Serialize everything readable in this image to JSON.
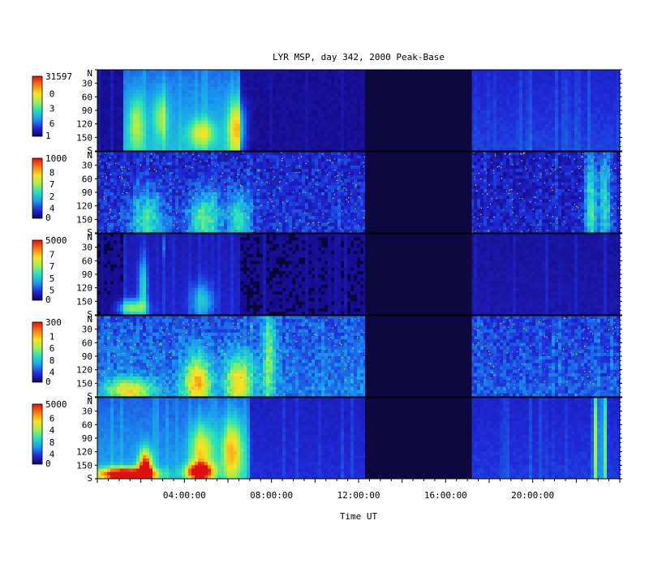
{
  "title": "LYR MSP, day 342, 2000 Peak-Base",
  "xlabel": "Time UT",
  "colors": {
    "background": "#ffffff",
    "panel_background": "#0a0636",
    "no_data_band": "#0d0840",
    "colormap": [
      "#140070",
      "#1f2bd8",
      "#1a9bf0",
      "#24e0c0",
      "#a0f050",
      "#ffe020",
      "#ff7a10",
      "#e01010"
    ]
  },
  "chart_data": {
    "type": "heatmap",
    "title": "LYR MSP, day 342, 2000 Peak-Base",
    "xlabel": "Time UT",
    "x_range_hours": [
      0,
      24
    ],
    "x_ticks": [
      "04:00:00",
      "08:00:00",
      "12:00:00",
      "16:00:00",
      "20:00:00"
    ],
    "x_tick_hours": [
      4,
      8,
      12,
      16,
      20
    ],
    "y_ticks": [
      "N",
      "30",
      "60",
      "90",
      "120",
      "150",
      "S"
    ],
    "y_tick_degrees": [
      0,
      30,
      60,
      90,
      120,
      150,
      180
    ],
    "no_data_interval_hours": [
      12.3,
      17.2
    ],
    "panels": [
      {
        "colorbar_top": "31597",
        "colorbar_mid": [
          "0",
          "3",
          "6"
        ],
        "colorbar_bottom": "1",
        "vmax": 31597,
        "vmin": 1,
        "texture": "smooth",
        "baseline": 0.05,
        "enhancements": [
          {
            "t0": 1.2,
            "t1": 6.6,
            "gain": 0.3
          },
          {
            "t0": 17.2,
            "t1": 24,
            "gain": 0.12
          }
        ],
        "events": [
          {
            "t": 1.8,
            "deg": 120,
            "w": 0.35,
            "h": 60,
            "amp": 0.3
          },
          {
            "t": 2.9,
            "deg": 105,
            "w": 0.35,
            "h": 50,
            "amp": 0.25
          },
          {
            "t": 4.8,
            "deg": 140,
            "w": 0.6,
            "h": 30,
            "amp": 0.35
          },
          {
            "t": 6.4,
            "deg": 130,
            "w": 0.4,
            "h": 60,
            "amp": 0.45
          },
          {
            "t": 3.0,
            "deg": 100,
            "w": 0.04,
            "h": 90,
            "amp": 0.8
          }
        ]
      },
      {
        "colorbar_top": "1000",
        "colorbar_mid": [
          "8",
          "7",
          "2",
          "4"
        ],
        "colorbar_bottom": "0",
        "vmax": 1000,
        "vmin": 0,
        "texture": "speckle",
        "baseline": 0.07,
        "enhancements": [
          {
            "t0": 0.0,
            "t1": 12.3,
            "gain": 0.08
          },
          {
            "t0": 17.2,
            "t1": 24,
            "gain": 0.05
          }
        ],
        "events": [
          {
            "t": 2.3,
            "deg": 150,
            "w": 0.7,
            "h": 60,
            "amp": 0.3
          },
          {
            "t": 4.9,
            "deg": 150,
            "w": 0.7,
            "h": 60,
            "amp": 0.35
          },
          {
            "t": 6.5,
            "deg": 150,
            "w": 0.5,
            "h": 60,
            "amp": 0.3
          },
          {
            "t": 22.7,
            "deg": 120,
            "w": 0.25,
            "h": 120,
            "amp": 0.35
          },
          {
            "t": 23.3,
            "deg": 120,
            "w": 0.25,
            "h": 120,
            "amp": 0.3
          }
        ]
      },
      {
        "colorbar_top": "5000",
        "colorbar_mid": [
          "7",
          "7",
          "5",
          "5"
        ],
        "colorbar_bottom": "0",
        "vmax": 5000,
        "vmin": 0,
        "texture": "smooth",
        "baseline": 0.04,
        "enhancements": [
          {
            "t0": 1.2,
            "t1": 6.6,
            "gain": 0.08
          },
          {
            "t0": 17.2,
            "t1": 24,
            "gain": 0.04
          }
        ],
        "events": [
          {
            "t": 1.6,
            "deg": 165,
            "w": 0.6,
            "h": 18,
            "amp": 0.45
          },
          {
            "t": 2.1,
            "deg": 120,
            "w": 0.2,
            "h": 70,
            "amp": 0.3
          },
          {
            "t": 4.8,
            "deg": 150,
            "w": 0.5,
            "h": 40,
            "amp": 0.25
          },
          {
            "t": 3.0,
            "deg": 30,
            "w": 0.04,
            "h": 25,
            "amp": 0.6
          }
        ]
      },
      {
        "colorbar_top": "300",
        "colorbar_mid": [
          "1",
          "6",
          "8",
          "4"
        ],
        "colorbar_bottom": "0",
        "vmax": 300,
        "vmin": 0,
        "texture": "speckle",
        "baseline": 0.1,
        "enhancements": [
          {
            "t0": 0.0,
            "t1": 12.3,
            "gain": 0.15
          },
          {
            "t0": 17.2,
            "t1": 24,
            "gain": 0.1
          }
        ],
        "events": [
          {
            "t": 1.5,
            "deg": 165,
            "w": 1.1,
            "h": 25,
            "amp": 0.45
          },
          {
            "t": 4.6,
            "deg": 150,
            "w": 0.6,
            "h": 60,
            "amp": 0.55
          },
          {
            "t": 6.5,
            "deg": 150,
            "w": 0.6,
            "h": 60,
            "amp": 0.5
          },
          {
            "t": 7.9,
            "deg": 90,
            "w": 0.3,
            "h": 120,
            "amp": 0.3
          }
        ]
      },
      {
        "colorbar_top": "5000",
        "colorbar_mid": [
          "6",
          "4",
          "8",
          "4"
        ],
        "colorbar_bottom": "0",
        "vmax": 5000,
        "vmin": 0,
        "texture": "smooth",
        "baseline": 0.06,
        "enhancements": [
          {
            "t0": 0.0,
            "t1": 7.0,
            "gain": 0.25
          },
          {
            "t0": 7.0,
            "t1": 12.3,
            "gain": 0.08
          },
          {
            "t0": 17.2,
            "t1": 24,
            "gain": 0.1
          }
        ],
        "events": [
          {
            "t": 1.3,
            "deg": 170,
            "w": 1.3,
            "h": 14,
            "amp": 0.95
          },
          {
            "t": 2.2,
            "deg": 160,
            "w": 0.3,
            "h": 40,
            "amp": 0.9
          },
          {
            "t": 4.7,
            "deg": 165,
            "w": 0.6,
            "h": 18,
            "amp": 0.85
          },
          {
            "t": 4.8,
            "deg": 120,
            "w": 0.5,
            "h": 60,
            "amp": 0.45
          },
          {
            "t": 6.2,
            "deg": 120,
            "w": 0.5,
            "h": 70,
            "amp": 0.5
          },
          {
            "t": 22.9,
            "deg": 100,
            "w": 0.12,
            "h": 200,
            "amp": 0.45
          },
          {
            "t": 23.3,
            "deg": 100,
            "w": 0.1,
            "h": 200,
            "amp": 0.4
          }
        ]
      }
    ]
  }
}
